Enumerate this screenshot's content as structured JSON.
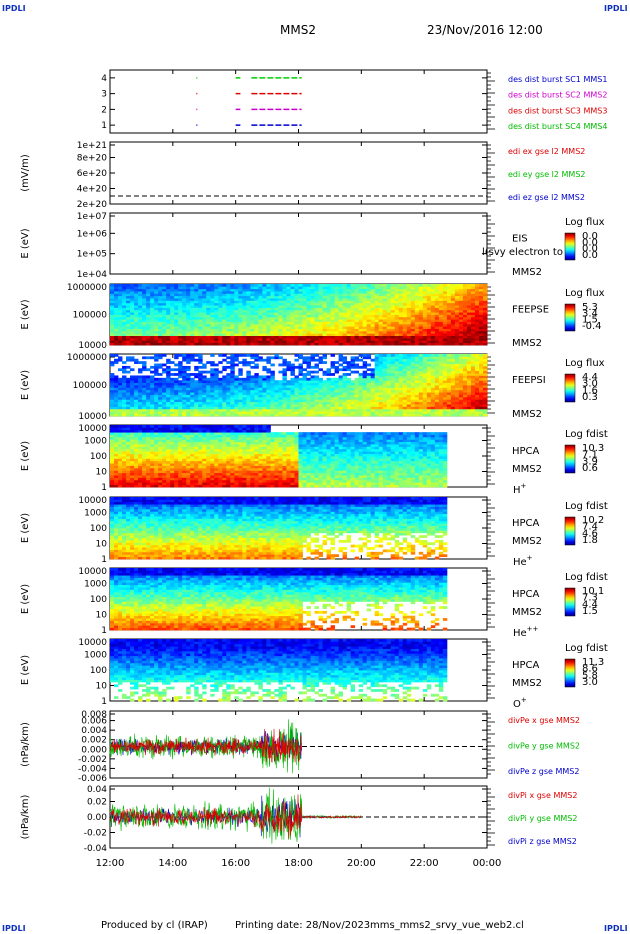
{
  "corner_label": "IPDLI",
  "header": {
    "title": "MMS2",
    "datetime": "23/Nov/2016 12:00"
  },
  "footer": {
    "produced": "Produced by cl (IRAP)",
    "printing": "Printing date: 28/Nov/2023",
    "file": "mms_mms2_srvy_vue_web2.cl"
  },
  "x_ticks": [
    "12:00",
    "14:00",
    "16:00",
    "18:00",
    "20:00",
    "22:00",
    "00:00"
  ],
  "chart_data": [
    {
      "type": "scatter",
      "id": "burst",
      "ylabel": "",
      "ytick_labels": [
        "1",
        "2",
        "3",
        "4"
      ],
      "ylim": [
        0.5,
        4.5
      ],
      "legend": [
        {
          "name": "des dist burst SC1 MMS1",
          "color": "#0000cc"
        },
        {
          "name": "des dist burst SC2 MMS2",
          "color": "#cc00cc"
        },
        {
          "name": "des dist burst SC3 MMS3",
          "color": "#dd0000"
        },
        {
          "name": "des dist burst SC4 MMS4",
          "color": "#00bb00"
        }
      ],
      "series": [
        {
          "y": 4,
          "color": "#00cc00",
          "x_start": 18.0,
          "x_end": 18.1,
          "segments": [
            [
              14.75,
              14.78
            ],
            [
              16.0,
              16.15
            ],
            [
              16.5,
              18.1
            ]
          ]
        },
        {
          "y": 3,
          "color": "#dd0000",
          "segments": [
            [
              14.75,
              14.78
            ],
            [
              16.0,
              16.15
            ],
            [
              16.5,
              18.1
            ]
          ]
        },
        {
          "y": 2,
          "color": "#cc00cc",
          "segments": [
            [
              14.75,
              14.78
            ],
            [
              16.0,
              16.15
            ],
            [
              16.5,
              18.1
            ]
          ]
        },
        {
          "y": 1,
          "color": "#0000cc",
          "segments": [
            [
              14.75,
              14.78
            ],
            [
              16.0,
              16.15
            ],
            [
              16.5,
              18.1
            ]
          ]
        }
      ]
    },
    {
      "type": "line",
      "id": "edi",
      "ylabel": "(mV/m)",
      "ytick_labels": [
        "2e+20",
        "4e+20",
        "6e+20",
        "8e+20",
        "1e+21"
      ],
      "ylim": [
        0,
        1.1e+21
      ],
      "legend": [
        {
          "name": "edi ex gse l2 MMS2",
          "color": "#dd0000"
        },
        {
          "name": "edi ey gse l2 MMS2",
          "color": "#00bb00"
        },
        {
          "name": "edi ez gse l2 MMS2",
          "color": "#0000cc"
        }
      ]
    },
    {
      "type": "heatmap",
      "id": "eis",
      "ylabel": "E (eV)",
      "ytick_labels": [
        "1e+04",
        "1e+05",
        "1e+06",
        "1e+07"
      ],
      "labels": [
        "EIS",
        "MMS2"
      ],
      "overlay": "l(svy electron to",
      "colorbar": {
        "title": "Log flux",
        "ticks": [
          "0.0",
          "0.0",
          "0.0",
          "0.0"
        ]
      }
    },
    {
      "type": "heatmap",
      "id": "feepse",
      "ylabel": "E (eV)",
      "ytick_labels": [
        "10000",
        "100000",
        "1000000"
      ],
      "labels": [
        "FEEPSE",
        "MMS2"
      ],
      "colorbar": {
        "title": "Log flux",
        "ticks": [
          "5.3",
          "3.4",
          "1.5",
          "-0.4"
        ]
      }
    },
    {
      "type": "heatmap",
      "id": "feepsi",
      "ylabel": "E (eV)",
      "ytick_labels": [
        "10000",
        "100000",
        "1000000"
      ],
      "labels": [
        "FEEPSI",
        "MMS2"
      ],
      "colorbar": {
        "title": "Log flux",
        "ticks": [
          "4.4",
          "3.0",
          "1.6",
          "0.3"
        ]
      }
    },
    {
      "type": "heatmap",
      "id": "hpca_h",
      "ylabel": "E (eV)",
      "ytick_labels": [
        "1",
        "10",
        "100",
        "1000",
        "10000"
      ],
      "labels": [
        "HPCA",
        "MMS2"
      ],
      "species": "H",
      "species_sup": "+",
      "colorbar": {
        "title": "Log fdist",
        "ticks": [
          "10.3",
          "7.1",
          "3.9",
          "0.6"
        ]
      }
    },
    {
      "type": "heatmap",
      "id": "hpca_he",
      "ylabel": "E (eV)",
      "ytick_labels": [
        "1",
        "10",
        "100",
        "1000",
        "10000"
      ],
      "labels": [
        "HPCA",
        "MMS2"
      ],
      "species": "He",
      "species_sup": "+",
      "colorbar": {
        "title": "Log fdist",
        "ticks": [
          "10.2",
          "7.4",
          "4.6",
          "1.8"
        ]
      }
    },
    {
      "type": "heatmap",
      "id": "hpca_hepp",
      "ylabel": "E (eV)",
      "ytick_labels": [
        "1",
        "10",
        "100",
        "1000",
        "10000"
      ],
      "labels": [
        "HPCA",
        "MMS2"
      ],
      "species": "He",
      "species_sup": "++",
      "colorbar": {
        "title": "Log fdist",
        "ticks": [
          "10.1",
          "7.3",
          "4.4",
          "1.5"
        ]
      }
    },
    {
      "type": "heatmap",
      "id": "hpca_o",
      "ylabel": "E (eV)",
      "ytick_labels": [
        "1",
        "10",
        "100",
        "1000",
        "10000"
      ],
      "labels": [
        "HPCA",
        "MMS2"
      ],
      "species": "O",
      "species_sup": "+",
      "colorbar": {
        "title": "Log fdist",
        "ticks": [
          "11.3",
          "8.6",
          "5.8",
          "3.0"
        ]
      }
    },
    {
      "type": "line",
      "id": "divpe",
      "ylabel": "(nPa/km)",
      "ytick_labels": [
        "-0.006",
        "-0.004",
        "-0.002",
        "0.000",
        "0.002",
        "0.004",
        "0.006",
        "0.008"
      ],
      "ylim": [
        -0.007,
        0.0085
      ],
      "legend": [
        {
          "name": "divPe x gse MMS2",
          "color": "#dd0000"
        },
        {
          "name": "divPe y gse MMS2",
          "color": "#00bb00"
        },
        {
          "name": "divPe z gse MMS2",
          "color": "#0000cc"
        }
      ]
    },
    {
      "type": "line",
      "id": "divpi",
      "ylabel": "(nPa/km)",
      "ytick_labels": [
        "-0.04",
        "-0.02",
        "0.00",
        "0.02",
        "0.04"
      ],
      "ylim": [
        -0.045,
        0.045
      ],
      "legend": [
        {
          "name": "divPi x gse MMS2",
          "color": "#dd0000"
        },
        {
          "name": "divPi y gse MMS2",
          "color": "#00bb00"
        },
        {
          "name": "divPi z gse MMS2",
          "color": "#0000cc"
        }
      ]
    }
  ]
}
